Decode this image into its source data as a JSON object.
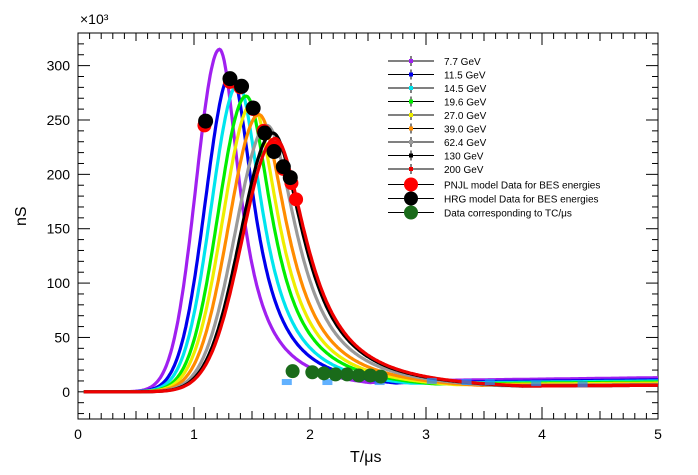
{
  "chart_data": {
    "type": "line",
    "xlabel": "T/μs",
    "ylabel": "nS",
    "y_multiplier": "×10³",
    "xlim": [
      0,
      5
    ],
    "ylim": [
      -25,
      330
    ],
    "x_ticks": [
      0,
      1,
      2,
      3,
      4,
      5
    ],
    "y_ticks": [
      0,
      50,
      100,
      150,
      200,
      250,
      300
    ],
    "grid": false,
    "legend_position": "top-right",
    "series": [
      {
        "name": "7.7 GeV",
        "color": "#a020f0",
        "peak_x": 1.22,
        "peak_y": 315,
        "tail": 13
      },
      {
        "name": "11.5 GeV",
        "color": "#0000ee",
        "peak_x": 1.32,
        "peak_y": 293,
        "tail": 11
      },
      {
        "name": "14.5 GeV",
        "color": "#00e5ee",
        "peak_x": 1.38,
        "peak_y": 283,
        "tail": 10
      },
      {
        "name": "19.6 GeV",
        "color": "#00ee00",
        "peak_x": 1.45,
        "peak_y": 272,
        "tail": 9
      },
      {
        "name": "27.0 GeV",
        "color": "#eeee00",
        "peak_x": 1.5,
        "peak_y": 265,
        "tail": 8
      },
      {
        "name": "39.0 GeV",
        "color": "#ff8c00",
        "peak_x": 1.56,
        "peak_y": 255,
        "tail": 7
      },
      {
        "name": "62.4 GeV",
        "color": "#9a9a9a",
        "peak_x": 1.63,
        "peak_y": 245,
        "tail": 6.5
      },
      {
        "name": "130 GeV",
        "color": "#000000",
        "peak_x": 1.68,
        "peak_y": 238,
        "tail": 6
      },
      {
        "name": "200 GeV",
        "color": "#ee0000",
        "peak_x": 1.7,
        "peak_y": 233,
        "tail": 6
      }
    ],
    "pnjl_points": {
      "name": "PNJL model Data for BES energies",
      "color": "#ff0000",
      "x": [
        1.09,
        1.31,
        1.4,
        1.51,
        1.6,
        1.69,
        1.77,
        1.84,
        1.88
      ],
      "y": [
        245,
        285,
        280,
        260,
        240,
        225,
        205,
        192,
        177
      ]
    },
    "hrg_points": {
      "name": "HRG model Data for BES energies",
      "color": "#000000",
      "x": [
        1.1,
        1.31,
        1.41,
        1.51,
        1.61,
        1.69,
        1.77,
        1.83
      ],
      "y": [
        249,
        288,
        281,
        261,
        238,
        221,
        207,
        197
      ]
    },
    "tc_points": {
      "name": "Data corresponding to TC/μs",
      "color": "#1a6b1a",
      "x": [
        1.85,
        2.02,
        2.12,
        2.22,
        2.32,
        2.42,
        2.52,
        2.61
      ],
      "y": [
        19,
        18,
        17,
        16,
        16,
        15,
        15,
        14
      ]
    },
    "error_markers": {
      "x": [
        1.8,
        2.15,
        2.6,
        3.05,
        3.35,
        3.55,
        3.95,
        4.35
      ],
      "y": [
        9,
        9,
        9,
        10,
        9,
        9,
        8,
        7
      ]
    }
  }
}
